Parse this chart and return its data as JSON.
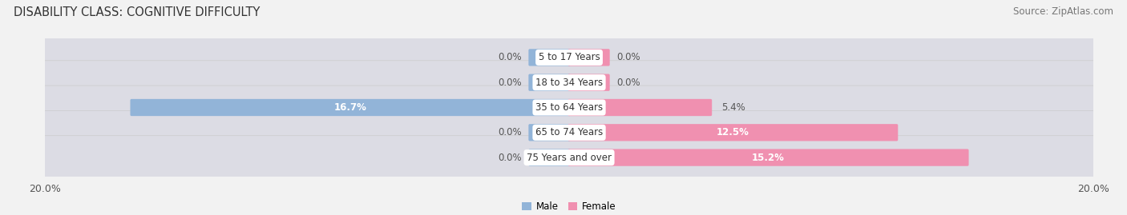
{
  "title": "DISABILITY CLASS: COGNITIVE DIFFICULTY",
  "source": "Source: ZipAtlas.com",
  "categories": [
    "5 to 17 Years",
    "18 to 34 Years",
    "35 to 64 Years",
    "65 to 74 Years",
    "75 Years and over"
  ],
  "male_values": [
    0.0,
    0.0,
    16.7,
    0.0,
    0.0
  ],
  "female_values": [
    0.0,
    0.0,
    5.4,
    12.5,
    15.2
  ],
  "male_color": "#92b4d8",
  "female_color": "#f090b0",
  "male_label": "Male",
  "female_label": "Female",
  "x_max": 20.0,
  "x_min": -20.0,
  "row_bg_color": "#dcdce4",
  "fig_bg_color": "#f2f2f2",
  "title_fontsize": 10.5,
  "source_fontsize": 8.5,
  "label_fontsize": 8.5,
  "tick_fontsize": 9,
  "stub_size": 1.5
}
